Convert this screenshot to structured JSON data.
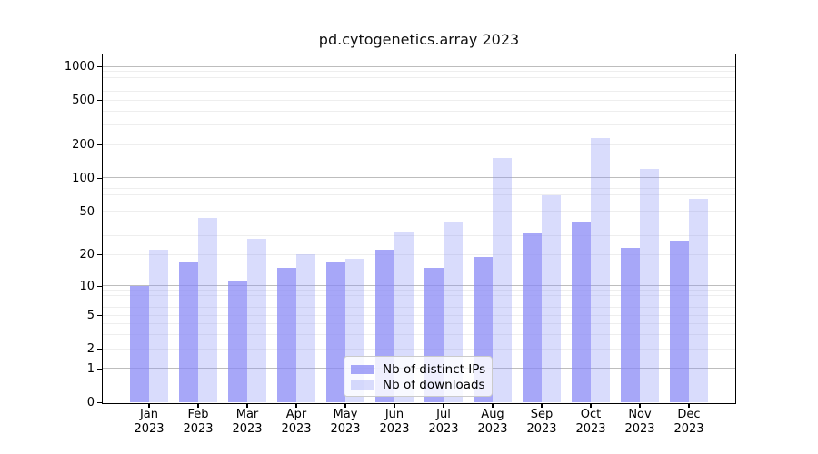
{
  "title": "pd.cytogenetics.array 2023",
  "chart_data": {
    "type": "bar",
    "title": "pd.cytogenetics.array 2023",
    "categories": [
      "Jan 2023",
      "Feb 2023",
      "Mar 2023",
      "Apr 2023",
      "May 2023",
      "Jun 2023",
      "Jul 2023",
      "Aug 2023",
      "Sep 2023",
      "Oct 2023",
      "Nov 2023",
      "Dec 2023"
    ],
    "series": [
      {
        "name": "Nb of distinct IPs",
        "values": [
          10,
          17,
          11,
          15,
          17,
          22,
          15,
          19,
          31,
          40,
          23,
          27
        ]
      },
      {
        "name": "Nb of downloads",
        "values": [
          22,
          43,
          28,
          20,
          18,
          32,
          40,
          150,
          70,
          230,
          120,
          65
        ]
      }
    ],
    "xlabel": "",
    "ylabel": "",
    "yscale": "log1p",
    "ylim": [
      0,
      1280
    ],
    "y_ticks": [
      0,
      1,
      2,
      5,
      10,
      20,
      50,
      100,
      200,
      500,
      1000
    ],
    "y_tick_labels": [
      "0",
      "1",
      "2",
      "5",
      "10",
      "20",
      "50",
      "100",
      "200",
      "500",
      "1000"
    ],
    "y_major_gridlines": [
      1,
      10,
      100,
      1000
    ],
    "grid": true,
    "legend_position": "lower center"
  },
  "colors": {
    "bar_ips": "rgba(138,138,245,0.75)",
    "bar_downloads": "rgba(138,145,247,0.32)",
    "grid_major": "#bdbdbd",
    "grid_minor": "#eeeeee",
    "spine": "#000000",
    "legend_border": "#cbcbcb"
  }
}
